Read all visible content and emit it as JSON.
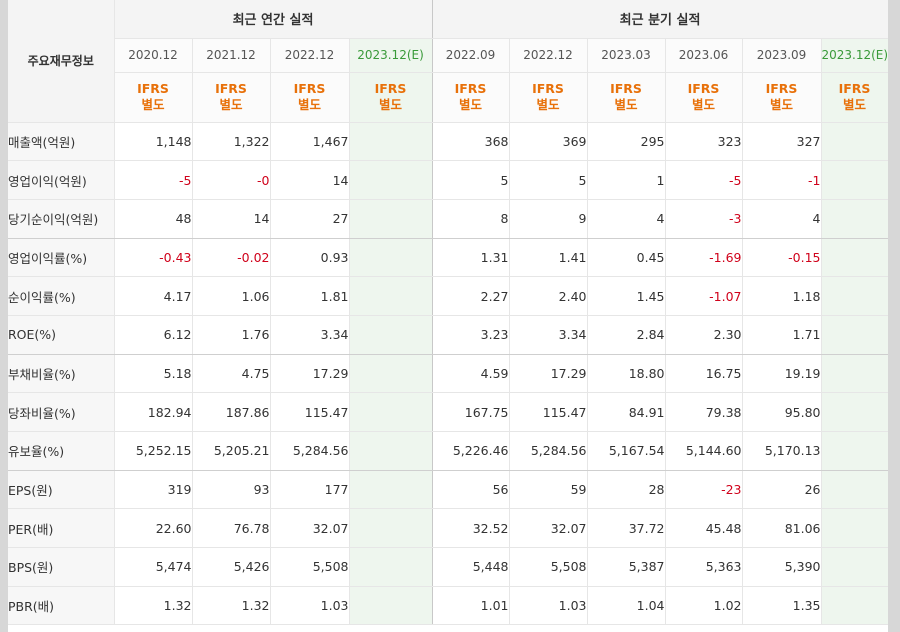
{
  "header": {
    "row_label": "주요재무정보",
    "annual_group": "최근 연간 실적",
    "quarter_group": "최근 분기 실적",
    "ifrs_line1": "IFRS",
    "ifrs_line2": "별도"
  },
  "periods": [
    {
      "label": "2020.12",
      "estimate": false
    },
    {
      "label": "2021.12",
      "estimate": false
    },
    {
      "label": "2022.12",
      "estimate": false
    },
    {
      "label": "2023.12(E)",
      "estimate": true
    },
    {
      "label": "2022.09",
      "estimate": false
    },
    {
      "label": "2022.12",
      "estimate": false
    },
    {
      "label": "2023.03",
      "estimate": false
    },
    {
      "label": "2023.06",
      "estimate": false
    },
    {
      "label": "2023.09",
      "estimate": false
    },
    {
      "label": "2023.12(E)",
      "estimate": true
    }
  ],
  "rows": [
    {
      "label": "매출액(억원)",
      "values": [
        "1,148",
        "1,322",
        "1,467",
        "",
        "368",
        "369",
        "295",
        "323",
        "327",
        ""
      ]
    },
    {
      "label": "영업이익(억원)",
      "values": [
        "-5",
        "-0",
        "14",
        "",
        "5",
        "5",
        "1",
        "-5",
        "-1",
        ""
      ]
    },
    {
      "label": "당기순이익(억원)",
      "values": [
        "48",
        "14",
        "27",
        "",
        "8",
        "9",
        "4",
        "-3",
        "4",
        ""
      ]
    },
    {
      "label": "영업이익률(%)",
      "values": [
        "-0.43",
        "-0.02",
        "0.93",
        "",
        "1.31",
        "1.41",
        "0.45",
        "-1.69",
        "-0.15",
        ""
      ]
    },
    {
      "label": "순이익률(%)",
      "values": [
        "4.17",
        "1.06",
        "1.81",
        "",
        "2.27",
        "2.40",
        "1.45",
        "-1.07",
        "1.18",
        ""
      ]
    },
    {
      "label": "ROE(%)",
      "values": [
        "6.12",
        "1.76",
        "3.34",
        "",
        "3.23",
        "3.34",
        "2.84",
        "2.30",
        "1.71",
        ""
      ]
    },
    {
      "label": "부채비율(%)",
      "values": [
        "5.18",
        "4.75",
        "17.29",
        "",
        "4.59",
        "17.29",
        "18.80",
        "16.75",
        "19.19",
        ""
      ]
    },
    {
      "label": "당좌비율(%)",
      "values": [
        "182.94",
        "187.86",
        "115.47",
        "",
        "167.75",
        "115.47",
        "84.91",
        "79.38",
        "95.80",
        ""
      ]
    },
    {
      "label": "유보율(%)",
      "values": [
        "5,252.15",
        "5,205.21",
        "5,284.56",
        "",
        "5,226.46",
        "5,284.56",
        "5,167.54",
        "5,144.60",
        "5,170.13",
        ""
      ]
    },
    {
      "label": "EPS(원)",
      "values": [
        "319",
        "93",
        "177",
        "",
        "56",
        "59",
        "28",
        "-23",
        "26",
        ""
      ]
    },
    {
      "label": "PER(배)",
      "values": [
        "22.60",
        "76.78",
        "32.07",
        "",
        "32.52",
        "32.07",
        "37.72",
        "45.48",
        "81.06",
        ""
      ]
    },
    {
      "label": "BPS(원)",
      "values": [
        "5,474",
        "5,426",
        "5,508",
        "",
        "5,448",
        "5,508",
        "5,387",
        "5,363",
        "5,390",
        ""
      ]
    },
    {
      "label": "PBR(배)",
      "values": [
        "1.32",
        "1.32",
        "1.03",
        "",
        "1.01",
        "1.03",
        "1.04",
        "1.02",
        "1.35",
        ""
      ]
    }
  ],
  "colors": {
    "negative": "#d0021b",
    "ifrs": "#e8710a",
    "estimate_bg": "#eef6ee",
    "estimate_text": "#3a9a3a"
  }
}
